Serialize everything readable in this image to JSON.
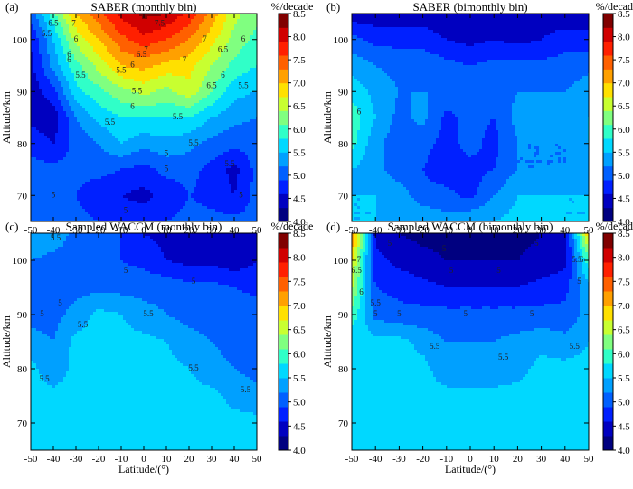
{
  "colormap": [
    "#000080",
    "#0000c0",
    "#0020ff",
    "#0060ff",
    "#00a0ff",
    "#00d8ff",
    "#30ffc8",
    "#80ff80",
    "#c8ff30",
    "#ffe000",
    "#ffa000",
    "#ff6000",
    "#ff2000",
    "#d00000",
    "#800000"
  ],
  "chart_data": [
    {
      "type": "heatmap",
      "panel_label": "(a)",
      "title": "SABER (monthly bin)",
      "xlabel": "Latitude/(°)",
      "ylabel": "Altitude/km",
      "xlim": [
        -50,
        50
      ],
      "ylim": [
        65,
        105
      ],
      "xticks": [
        "-50",
        "-40",
        "-30",
        "-20",
        "-10",
        "0",
        "10",
        "20",
        "30",
        "40",
        "50"
      ],
      "yticks": [
        "70",
        "80",
        "90",
        "100"
      ],
      "colorbar": {
        "unit": "%/decade",
        "range": [
          4.0,
          8.5
        ],
        "ticks": [
          "4.0",
          "4.5",
          "5.0",
          "5.5",
          "6.0",
          "6.5",
          "7.0",
          "7.5",
          "8.0",
          "8.5"
        ]
      },
      "lat": [
        -50,
        -40,
        -30,
        -20,
        -10,
        0,
        10,
        20,
        30,
        40,
        50
      ],
      "alt": [
        65,
        70,
        75,
        80,
        85,
        90,
        95,
        100,
        105
      ],
      "values": [
        [
          5.0,
          5.0,
          5.0,
          4.9,
          4.8,
          4.8,
          4.9,
          5.0,
          5.0,
          5.0,
          5.0
        ],
        [
          5.0,
          5.0,
          4.9,
          4.7,
          4.6,
          4.5,
          4.7,
          4.9,
          4.8,
          4.6,
          5.0
        ],
        [
          5.0,
          5.0,
          5.0,
          5.0,
          4.9,
          4.8,
          5.0,
          5.0,
          4.8,
          4.5,
          5.0
        ],
        [
          4.8,
          4.6,
          5.0,
          5.2,
          5.5,
          5.3,
          5.4,
          5.3,
          5.1,
          5.0,
          5.0
        ],
        [
          4.5,
          4.4,
          5.2,
          5.6,
          5.8,
          5.8,
          5.8,
          5.8,
          5.5,
          5.3,
          5.2
        ],
        [
          4.4,
          4.8,
          5.7,
          6.0,
          6.3,
          6.5,
          6.3,
          6.6,
          6.1,
          5.6,
          5.5
        ],
        [
          4.5,
          5.3,
          6.0,
          6.5,
          7.0,
          7.1,
          6.9,
          6.8,
          6.4,
          6.0,
          5.8
        ],
        [
          4.6,
          5.5,
          6.5,
          7.0,
          7.5,
          7.8,
          7.6,
          7.3,
          6.8,
          6.3,
          6.0
        ],
        [
          5.0,
          6.0,
          7.0,
          7.5,
          8.0,
          8.3,
          8.2,
          7.8,
          7.2,
          6.5,
          6.2
        ]
      ],
      "contour_labels": [
        {
          "text": "6.5",
          "lat": -40,
          "alt": 103
        },
        {
          "text": "7",
          "lat": -31,
          "alt": 103
        },
        {
          "text": "5.5",
          "lat": -43,
          "alt": 101
        },
        {
          "text": "7.5",
          "lat": 7,
          "alt": 103
        },
        {
          "text": "7",
          "lat": 27,
          "alt": 100
        },
        {
          "text": "6.5",
          "lat": 35,
          "alt": 98
        },
        {
          "text": "6",
          "lat": 44,
          "alt": 100
        },
        {
          "text": "7",
          "lat": 1,
          "alt": 98
        },
        {
          "text": "6.5",
          "lat": -1,
          "alt": 97
        },
        {
          "text": "7",
          "lat": 18,
          "alt": 96
        },
        {
          "text": "6",
          "lat": -5,
          "alt": 95
        },
        {
          "text": "6.5",
          "lat": 30,
          "alt": 91
        },
        {
          "text": "6",
          "lat": 35,
          "alt": 93
        },
        {
          "text": "5.5",
          "lat": 44,
          "alt": 91
        },
        {
          "text": "5.5",
          "lat": -28,
          "alt": 93
        },
        {
          "text": "5.5",
          "lat": -10,
          "alt": 94
        },
        {
          "text": "6",
          "lat": -5,
          "alt": 87
        },
        {
          "text": "5.5",
          "lat": -3,
          "alt": 90
        },
        {
          "text": "6",
          "lat": -33,
          "alt": 96
        },
        {
          "text": "6",
          "lat": -33,
          "alt": 97
        },
        {
          "text": "6",
          "lat": -30,
          "alt": 100
        },
        {
          "text": "5.5",
          "lat": 15,
          "alt": 85
        },
        {
          "text": "5.5",
          "lat": -15,
          "alt": 84
        },
        {
          "text": "5.5",
          "lat": 22,
          "alt": 80
        },
        {
          "text": "5",
          "lat": 10,
          "alt": 78
        },
        {
          "text": "5",
          "lat": 10,
          "alt": 75
        },
        {
          "text": "5.5",
          "lat": 38,
          "alt": 76
        },
        {
          "text": "5",
          "lat": -40,
          "alt": 70
        },
        {
          "text": "5",
          "lat": -8,
          "alt": 67
        },
        {
          "text": "5",
          "lat": 43,
          "alt": 70
        }
      ]
    },
    {
      "type": "heatmap",
      "panel_label": "(b)",
      "title": "SABER (bimonthly bin)",
      "xlabel": "Latitude/(°)",
      "ylabel": "Altitude/km",
      "xlim": [
        -50,
        50
      ],
      "ylim": [
        65,
        105
      ],
      "xticks": [
        "-50",
        "-40",
        "-30",
        "-20",
        "-10",
        "0",
        "10",
        "20",
        "30",
        "40",
        "50"
      ],
      "yticks": [
        "70",
        "80",
        "90",
        "100"
      ],
      "colorbar": {
        "unit": "%/decade",
        "range": [
          4.0,
          8.5
        ],
        "ticks": [
          "4.0",
          "4.5",
          "5.0",
          "5.5",
          "6.0",
          "6.5",
          "7.0",
          "7.5",
          "8.0",
          "8.5"
        ]
      },
      "lat": [
        -50,
        -40,
        -30,
        -20,
        -10,
        0,
        10,
        20,
        30,
        40,
        50
      ],
      "alt": [
        65,
        70,
        75,
        80,
        85,
        90,
        95,
        100,
        105
      ],
      "values": [
        [
          5.5,
          5.5,
          5.5,
          5.5,
          5.3,
          5.5,
          5.5,
          5.6,
          5.6,
          5.5,
          5.5
        ],
        [
          5.5,
          5.5,
          5.4,
          5.0,
          5.0,
          4.8,
          5.2,
          5.5,
          5.5,
          5.5,
          5.5
        ],
        [
          5.5,
          5.3,
          5.0,
          4.9,
          4.7,
          4.8,
          4.9,
          5.2,
          5.2,
          5.2,
          5.4
        ],
        [
          5.9,
          5.3,
          5.0,
          5.0,
          4.8,
          5.0,
          4.8,
          5.2,
          5.2,
          5.2,
          5.5
        ],
        [
          6.0,
          5.5,
          5.1,
          5.3,
          4.8,
          5.0,
          4.9,
          5.3,
          5.3,
          5.3,
          5.5
        ],
        [
          5.7,
          5.4,
          5.2,
          5.2,
          5.2,
          5.0,
          5.1,
          5.2,
          5.2,
          5.2,
          5.4
        ],
        [
          5.4,
          5.2,
          5.1,
          5.1,
          5.0,
          4.9,
          5.0,
          5.0,
          5.0,
          5.0,
          5.1
        ],
        [
          5.0,
          4.8,
          4.8,
          4.8,
          4.6,
          4.5,
          4.6,
          4.5,
          4.6,
          4.8,
          4.7
        ],
        [
          4.4,
          4.4,
          4.4,
          4.4,
          4.3,
          4.3,
          4.3,
          4.4,
          4.4,
          4.3,
          4.4
        ]
      ],
      "contour_labels": [
        {
          "text": "6",
          "lat": -47,
          "alt": 86
        }
      ]
    },
    {
      "type": "heatmap",
      "panel_label": "(c)",
      "title": "Sampled WACCM (monthly bin)",
      "xlabel": "Latitude/(°)",
      "ylabel": "Altitude/km",
      "xlim": [
        -50,
        50
      ],
      "ylim": [
        65,
        105
      ],
      "xticks": [
        "-50",
        "-40",
        "-30",
        "-20",
        "-10",
        "0",
        "10",
        "20",
        "30",
        "40",
        "50"
      ],
      "yticks": [
        "70",
        "80",
        "90",
        "100"
      ],
      "colorbar": {
        "unit": "%/decade",
        "range": [
          4.0,
          8.5
        ],
        "ticks": [
          "4.0",
          "4.5",
          "5.0",
          "5.5",
          "6.0",
          "6.5",
          "7.0",
          "7.5",
          "8.0",
          "8.5"
        ]
      },
      "lat": [
        -50,
        -40,
        -30,
        -20,
        -10,
        0,
        10,
        20,
        30,
        40,
        50
      ],
      "alt": [
        65,
        70,
        75,
        80,
        85,
        90,
        95,
        100,
        105
      ],
      "values": [
        [
          5.6,
          5.6,
          5.6,
          5.6,
          5.6,
          5.6,
          5.6,
          5.6,
          5.6,
          5.6,
          5.6
        ],
        [
          5.6,
          5.6,
          5.6,
          5.6,
          5.6,
          5.6,
          5.6,
          5.6,
          5.6,
          5.6,
          5.6
        ],
        [
          5.6,
          5.6,
          5.6,
          5.6,
          5.6,
          5.6,
          5.6,
          5.6,
          5.6,
          5.4,
          5.3
        ],
        [
          5.6,
          5.3,
          5.6,
          5.6,
          5.6,
          5.6,
          5.6,
          5.5,
          5.3,
          5.2,
          5.1
        ],
        [
          5.3,
          5.2,
          5.6,
          5.6,
          5.6,
          5.6,
          5.5,
          5.3,
          5.2,
          5.1,
          5.1
        ],
        [
          5.1,
          5.1,
          5.3,
          5.6,
          5.5,
          5.3,
          5.2,
          5.1,
          5.1,
          5.1,
          5.1
        ],
        [
          5.1,
          5.1,
          5.1,
          5.1,
          5.1,
          5.1,
          5.1,
          5.0,
          5.0,
          4.9,
          4.8
        ],
        [
          5.2,
          5.1,
          5.1,
          5.0,
          4.9,
          4.8,
          4.6,
          4.5,
          4.5,
          4.4,
          4.6
        ],
        [
          5.5,
          5.4,
          5.1,
          5.0,
          4.9,
          4.6,
          4.5,
          4.4,
          4.3,
          4.3,
          4.5
        ]
      ],
      "contour_labels": [
        {
          "text": "5.5",
          "lat": -39,
          "alt": 104
        },
        {
          "text": "5",
          "lat": -8,
          "alt": 98
        },
        {
          "text": "5",
          "lat": 22,
          "alt": 96
        },
        {
          "text": "5",
          "lat": -45,
          "alt": 90
        },
        {
          "text": "5",
          "lat": -37,
          "alt": 92
        },
        {
          "text": "5.5",
          "lat": -27,
          "alt": 88
        },
        {
          "text": "5.5",
          "lat": 2,
          "alt": 90
        },
        {
          "text": "5.5",
          "lat": 22,
          "alt": 80
        },
        {
          "text": "5.5",
          "lat": -44,
          "alt": 78
        },
        {
          "text": "5.5",
          "lat": 45,
          "alt": 76
        }
      ]
    },
    {
      "type": "heatmap",
      "panel_label": "(d)",
      "title": "Sampled WACCM (bimonthly bin)",
      "xlabel": "Latitude/(°)",
      "ylabel": "Altitude/km",
      "xlim": [
        -50,
        50
      ],
      "ylim": [
        65,
        105
      ],
      "xticks": [
        "-50",
        "-40",
        "-30",
        "-20",
        "-10",
        "0",
        "10",
        "20",
        "30",
        "40",
        "50"
      ],
      "yticks": [
        "70",
        "80",
        "90",
        "100"
      ],
      "colorbar": {
        "unit": "%/decade",
        "range": [
          4.0,
          8.5
        ],
        "ticks": [
          "4.0",
          "4.5",
          "5.0",
          "5.5",
          "6.0",
          "6.5",
          "7.0",
          "7.5",
          "8.0",
          "8.5"
        ]
      },
      "lat": [
        -50,
        -40,
        -30,
        -20,
        -10,
        0,
        10,
        20,
        30,
        40,
        50
      ],
      "alt": [
        65,
        70,
        75,
        80,
        85,
        90,
        95,
        100,
        105
      ],
      "values": [
        [
          5.6,
          5.6,
          5.6,
          5.6,
          5.6,
          5.6,
          5.6,
          5.6,
          5.6,
          5.6,
          5.6
        ],
        [
          5.6,
          5.6,
          5.6,
          5.6,
          5.6,
          5.6,
          5.6,
          5.6,
          5.6,
          5.6,
          5.6
        ],
        [
          5.6,
          5.6,
          5.6,
          5.6,
          5.6,
          5.6,
          5.6,
          5.6,
          5.6,
          5.6,
          5.6
        ],
        [
          5.6,
          5.6,
          5.6,
          5.6,
          5.3,
          5.3,
          5.3,
          5.4,
          5.6,
          5.6,
          5.6
        ],
        [
          5.6,
          5.6,
          5.6,
          5.4,
          5.2,
          5.2,
          5.2,
          5.3,
          5.4,
          5.3,
          5.5
        ],
        [
          6.0,
          5.1,
          5.0,
          5.0,
          5.0,
          5.0,
          5.0,
          5.0,
          5.0,
          5.0,
          5.3
        ],
        [
          6.5,
          4.9,
          4.8,
          4.7,
          4.6,
          4.6,
          4.6,
          4.6,
          4.7,
          4.8,
          5.4
        ],
        [
          6.8,
          4.7,
          4.5,
          4.4,
          4.3,
          4.3,
          4.3,
          4.3,
          4.4,
          4.5,
          6.0
        ],
        [
          7.5,
          4.5,
          4.3,
          4.2,
          4.2,
          4.2,
          4.2,
          4.2,
          4.3,
          4.4,
          7.0
        ]
      ],
      "contour_labels": [
        {
          "text": "6.5",
          "lat": -48,
          "alt": 98
        },
        {
          "text": "7",
          "lat": -47,
          "alt": 100
        },
        {
          "text": "6",
          "lat": -46,
          "alt": 94
        },
        {
          "text": "5.5",
          "lat": -40,
          "alt": 92
        },
        {
          "text": "5",
          "lat": -34,
          "alt": 103
        },
        {
          "text": "5",
          "lat": -11,
          "alt": 102
        },
        {
          "text": "5",
          "lat": -8,
          "alt": 98
        },
        {
          "text": "5",
          "lat": 12,
          "alt": 98
        },
        {
          "text": "5",
          "lat": 28,
          "alt": 103
        },
        {
          "text": "5",
          "lat": -40,
          "alt": 90
        },
        {
          "text": "5",
          "lat": -30,
          "alt": 90
        },
        {
          "text": "5",
          "lat": -2,
          "alt": 90
        },
        {
          "text": "5",
          "lat": 26,
          "alt": 90
        },
        {
          "text": "5.5",
          "lat": -15,
          "alt": 84
        },
        {
          "text": "5.5",
          "lat": 14,
          "alt": 82
        },
        {
          "text": "5.5",
          "lat": 44,
          "alt": 84
        },
        {
          "text": "5.5",
          "lat": 45,
          "alt": 100
        },
        {
          "text": "6",
          "lat": 47,
          "alt": 100
        },
        {
          "text": "5",
          "lat": 46,
          "alt": 96
        }
      ]
    }
  ]
}
